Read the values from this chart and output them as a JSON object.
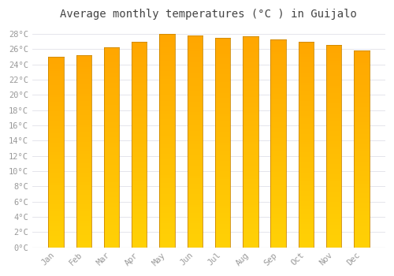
{
  "title": "Average monthly temperatures (°C ) in Guijalo",
  "months": [
    "Jan",
    "Feb",
    "Mar",
    "Apr",
    "May",
    "Jun",
    "Jul",
    "Aug",
    "Sep",
    "Oct",
    "Nov",
    "Dec"
  ],
  "values": [
    25.0,
    25.2,
    26.2,
    27.0,
    28.0,
    27.8,
    27.5,
    27.7,
    27.3,
    27.0,
    26.5,
    25.8
  ],
  "bar_color_bottom": "#FFB400",
  "bar_color_mid": "#FFCC00",
  "bar_color_top": "#FFAA00",
  "bar_edge_color": "#CC8800",
  "background_color": "#FFFFFF",
  "plot_bg_color": "#FFFFFF",
  "grid_color": "#E0E0E8",
  "ylim_max": 29,
  "ytick_step": 2,
  "title_fontsize": 10,
  "tick_fontsize": 7.5,
  "title_color": "#444444",
  "tick_color": "#999999",
  "font_family": "monospace",
  "bar_width": 0.55
}
